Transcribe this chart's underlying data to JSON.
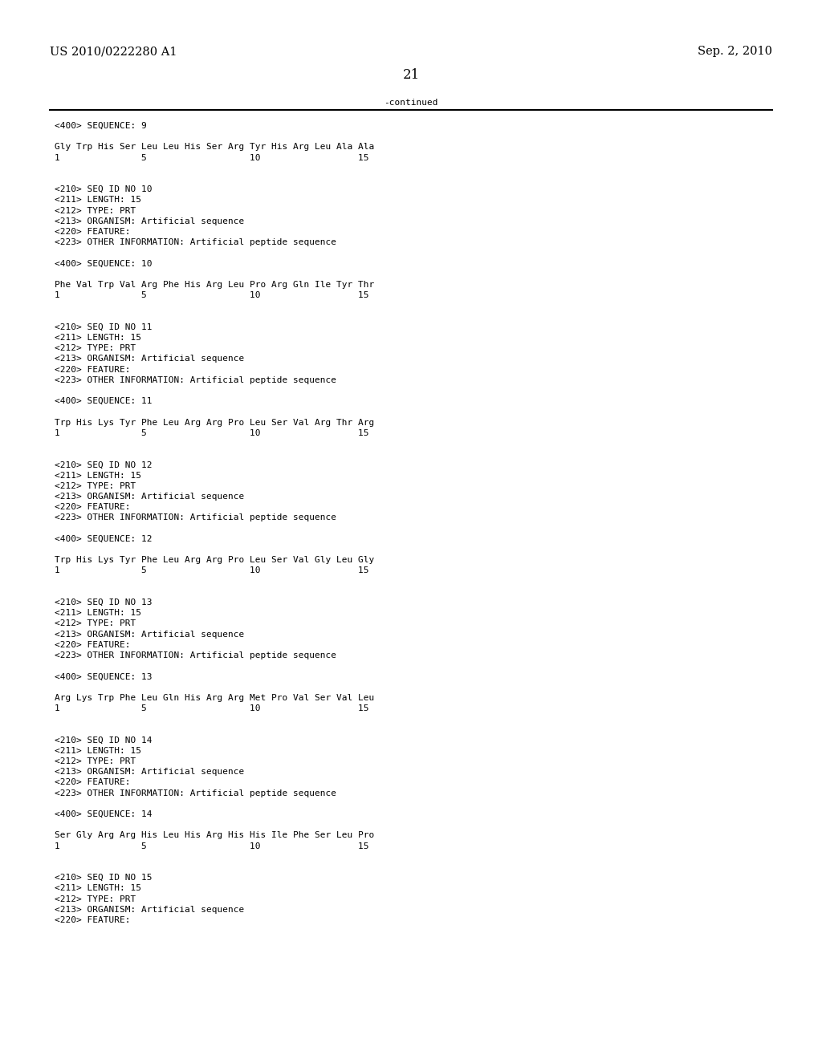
{
  "header_left": "US 2010/0222280 A1",
  "header_right": "Sep. 2, 2010",
  "page_number": "21",
  "continued_text": "-continued",
  "background_color": "#ffffff",
  "text_color": "#000000",
  "font_size_header": 10.5,
  "font_size_page": 12,
  "font_size_body": 8.0,
  "content_lines": [
    "<400> SEQUENCE: 9",
    "",
    "Gly Trp His Ser Leu Leu His Ser Arg Tyr His Arg Leu Ala Ala",
    "1               5                   10                  15",
    "",
    "",
    "<210> SEQ ID NO 10",
    "<211> LENGTH: 15",
    "<212> TYPE: PRT",
    "<213> ORGANISM: Artificial sequence",
    "<220> FEATURE:",
    "<223> OTHER INFORMATION: Artificial peptide sequence",
    "",
    "<400> SEQUENCE: 10",
    "",
    "Phe Val Trp Val Arg Phe His Arg Leu Pro Arg Gln Ile Tyr Thr",
    "1               5                   10                  15",
    "",
    "",
    "<210> SEQ ID NO 11",
    "<211> LENGTH: 15",
    "<212> TYPE: PRT",
    "<213> ORGANISM: Artificial sequence",
    "<220> FEATURE:",
    "<223> OTHER INFORMATION: Artificial peptide sequence",
    "",
    "<400> SEQUENCE: 11",
    "",
    "Trp His Lys Tyr Phe Leu Arg Arg Pro Leu Ser Val Arg Thr Arg",
    "1               5                   10                  15",
    "",
    "",
    "<210> SEQ ID NO 12",
    "<211> LENGTH: 15",
    "<212> TYPE: PRT",
    "<213> ORGANISM: Artificial sequence",
    "<220> FEATURE:",
    "<223> OTHER INFORMATION: Artificial peptide sequence",
    "",
    "<400> SEQUENCE: 12",
    "",
    "Trp His Lys Tyr Phe Leu Arg Arg Pro Leu Ser Val Gly Leu Gly",
    "1               5                   10                  15",
    "",
    "",
    "<210> SEQ ID NO 13",
    "<211> LENGTH: 15",
    "<212> TYPE: PRT",
    "<213> ORGANISM: Artificial sequence",
    "<220> FEATURE:",
    "<223> OTHER INFORMATION: Artificial peptide sequence",
    "",
    "<400> SEQUENCE: 13",
    "",
    "Arg Lys Trp Phe Leu Gln His Arg Arg Met Pro Val Ser Val Leu",
    "1               5                   10                  15",
    "",
    "",
    "<210> SEQ ID NO 14",
    "<211> LENGTH: 15",
    "<212> TYPE: PRT",
    "<213> ORGANISM: Artificial sequence",
    "<220> FEATURE:",
    "<223> OTHER INFORMATION: Artificial peptide sequence",
    "",
    "<400> SEQUENCE: 14",
    "",
    "Ser Gly Arg Arg His Leu His Arg His His Ile Phe Ser Leu Pro",
    "1               5                   10                  15",
    "",
    "",
    "<210> SEQ ID NO 15",
    "<211> LENGTH: 15",
    "<212> TYPE: PRT",
    "<213> ORGANISM: Artificial sequence",
    "<220> FEATURE:"
  ]
}
